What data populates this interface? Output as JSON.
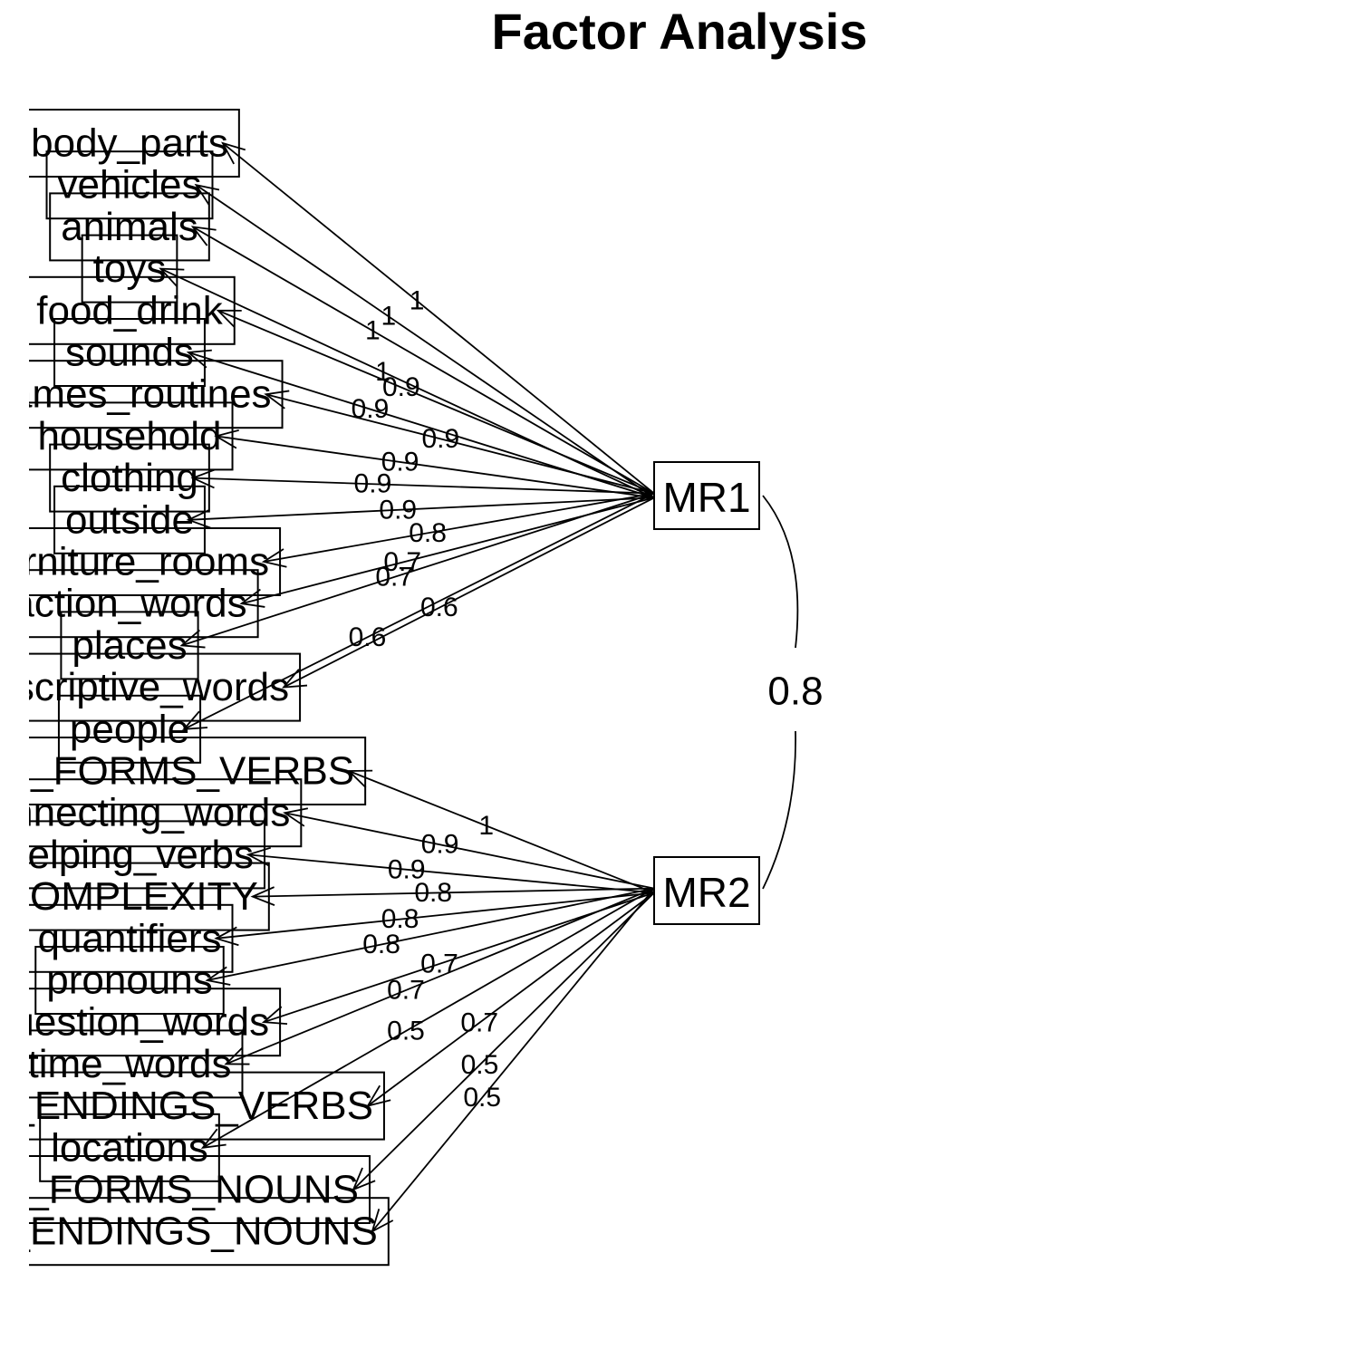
{
  "title": "Factor Analysis",
  "factors": [
    {
      "id": "MR1",
      "label": "MR1"
    },
    {
      "id": "MR2",
      "label": "MR2"
    }
  ],
  "factor_correlation": {
    "label": "0.8",
    "value": 0.8
  },
  "variables": [
    {
      "label": "body_parts",
      "factor": "MR1",
      "loading": "1"
    },
    {
      "label": "vehicles",
      "factor": "MR1",
      "loading": "1"
    },
    {
      "label": "animals",
      "factor": "MR1",
      "loading": "1"
    },
    {
      "label": "toys",
      "factor": "MR1",
      "loading": "1"
    },
    {
      "label": "food_drink",
      "factor": "MR1",
      "loading": "0.9"
    },
    {
      "label": "sounds",
      "factor": "MR1",
      "loading": "0.9"
    },
    {
      "label": "games_routines",
      "factor": "MR1",
      "loading": "0.9"
    },
    {
      "label": "household",
      "factor": "MR1",
      "loading": "0.9"
    },
    {
      "label": "clothing",
      "factor": "MR1",
      "loading": "0.9"
    },
    {
      "label": "outside",
      "factor": "MR1",
      "loading": "0.9"
    },
    {
      "label": "furniture_rooms",
      "factor": "MR1",
      "loading": "0.8"
    },
    {
      "label": "action_words",
      "factor": "MR1",
      "loading": "0.7"
    },
    {
      "label": "places",
      "factor": "MR1",
      "loading": "0.7"
    },
    {
      "label": "descriptive_words",
      "factor": "MR1",
      "loading": "0.6"
    },
    {
      "label": "people",
      "factor": "MR1",
      "loading": "0.6"
    },
    {
      "label": "WORD_FORMS_VERBS",
      "factor": "MR2",
      "loading": "1"
    },
    {
      "label": "connecting_words",
      "factor": "MR2",
      "loading": "0.9"
    },
    {
      "label": "helping_verbs",
      "factor": "MR2",
      "loading": "0.9"
    },
    {
      "label": "COMPLEXITY",
      "factor": "MR2",
      "loading": "0.8"
    },
    {
      "label": "quantifiers",
      "factor": "MR2",
      "loading": "0.8"
    },
    {
      "label": "pronouns",
      "factor": "MR2",
      "loading": "0.8"
    },
    {
      "label": "question_words",
      "factor": "MR2",
      "loading": "0.7"
    },
    {
      "label": "time_words",
      "factor": "MR2",
      "loading": "0.7"
    },
    {
      "label": "WORD_ENDINGS_VERBS",
      "factor": "MR2",
      "loading": "0.7"
    },
    {
      "label": "locations",
      "factor": "MR2",
      "loading": "0.5"
    },
    {
      "label": "WORD_FORMS_NOUNS",
      "factor": "MR2",
      "loading": "0.5"
    },
    {
      "label": "WORD_ENDINGS_NOUNS",
      "factor": "MR2",
      "loading": "0.5"
    }
  ]
}
